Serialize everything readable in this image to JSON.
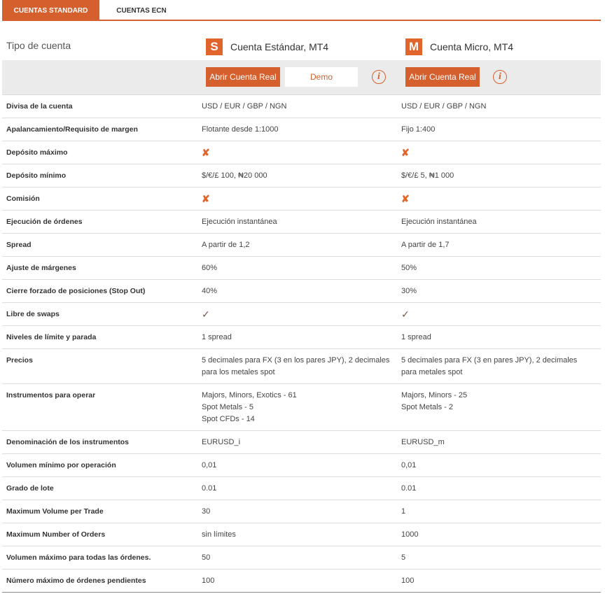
{
  "tabs": [
    "CUENTAS STANDARD",
    "CUENTAS ECN"
  ],
  "header": {
    "label": "Tipo de cuenta",
    "accounts": [
      {
        "badge": "S",
        "name": "Cuenta Estándar, MT4",
        "button": "Abrir Cuenta Real",
        "demo": "Demo",
        "info": "i"
      },
      {
        "badge": "M",
        "name": "Cuenta Micro, MT4",
        "button": "Abrir Cuenta Real",
        "info": "i"
      }
    ]
  },
  "rows": [
    {
      "label": "Divisa de la cuenta",
      "values": [
        "USD / EUR / GBP / NGN",
        "USD / EUR / GBP / NGN"
      ]
    },
    {
      "label": "Apalancamiento/Requisito de margen",
      "values": [
        "Flotante desde 1:1000",
        "Fijo 1:400"
      ]
    },
    {
      "label": "Depósito máximo",
      "values": [
        "✘",
        "✘"
      ]
    },
    {
      "label": "Depósito mínimo",
      "values": [
        "$/€/£ 100, ₦20 000",
        "$/€/£ 5, ₦1 000"
      ]
    },
    {
      "label": "Comisión",
      "values": [
        "✘",
        "✘"
      ]
    },
    {
      "label": "Ejecución de órdenes",
      "values": [
        "Ejecución instantánea",
        "Ejecución instantánea"
      ]
    },
    {
      "label": "Spread",
      "values": [
        "A partir de 1,2",
        "A partir de 1,7"
      ]
    },
    {
      "label": "Ajuste de márgenes",
      "values": [
        "60%",
        "50%"
      ]
    },
    {
      "label": "Cierre forzado de posiciones (Stop Out)",
      "values": [
        "40%",
        "30%"
      ]
    },
    {
      "label": "Libre de swaps",
      "values": [
        "✓",
        "✓"
      ]
    },
    {
      "label": "Niveles de límite y parada",
      "values": [
        "1 spread",
        "1 spread"
      ]
    },
    {
      "label": "Precios",
      "values": [
        "5 decimales para FX (3 en los pares JPY), 2 decimales para los metales spot",
        "5 decimales para FX (3 en pares JPY), 2 decimales para metales spot"
      ]
    },
    {
      "label": "Instrumentos para operar",
      "values": [
        [
          "Majors, Minors, Exotics - 61",
          "Spot Metals - 5",
          "Spot CFDs - 14"
        ],
        [
          "Majors, Minors - 25",
          "Spot Metals - 2"
        ]
      ]
    },
    {
      "label": "Denominación de los instrumentos",
      "values": [
        "EURUSD_i",
        "EURUSD_m"
      ]
    },
    {
      "label": "Volumen mínimo por operación",
      "values": [
        "0,01",
        "0,01"
      ]
    },
    {
      "label": "Grado de lote",
      "values": [
        "0.01",
        "0.01"
      ]
    },
    {
      "label": "Maximum Volume per Trade",
      "values": [
        "30",
        "1"
      ]
    },
    {
      "label": "Maximum Number of Orders",
      "values": [
        "sin límites",
        "1000"
      ]
    },
    {
      "label": "Volumen máximo para todas las órdenes.",
      "values": [
        "50",
        "5"
      ]
    },
    {
      "label": "Número máximo de órdenes pendientes",
      "values": [
        "100",
        "100"
      ]
    }
  ]
}
